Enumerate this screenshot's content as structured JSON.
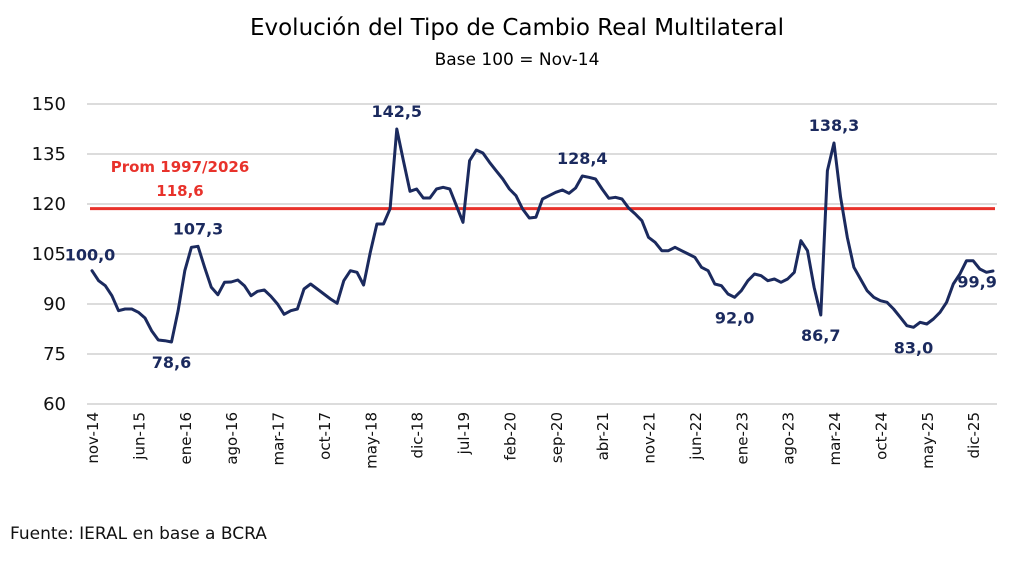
{
  "chart_data": {
    "type": "line",
    "title": "Evolución del Tipo de Cambio Real Multilateral",
    "subtitle": "Base 100 = Nov-14",
    "xlabel": "",
    "ylabel": "",
    "ylim": [
      60,
      150
    ],
    "yticks": [
      60,
      75,
      90,
      105,
      120,
      135,
      150
    ],
    "ytick_labels": [
      "60",
      "75",
      "90",
      "105",
      "120",
      "135",
      "150"
    ],
    "grid": true,
    "x_start": "nov-14",
    "x_end": "dic-25",
    "xtick_labels": [
      "nov-14",
      "jun-15",
      "ene-16",
      "ago-16",
      "mar-17",
      "oct-17",
      "may-18",
      "dic-18",
      "jul-19",
      "feb-20",
      "sep-20",
      "abr-21",
      "nov-21",
      "jun-22",
      "ene-23",
      "ago-23",
      "mar-24",
      "oct-24",
      "may-25",
      "dic-25"
    ],
    "xtick_every_months": 7,
    "series": [
      {
        "name": "Tipo de Cambio Real Multilateral",
        "color": "#1b2a5e",
        "values": [
          100.0,
          97.0,
          95.5,
          92.5,
          88.0,
          88.5,
          88.5,
          87.5,
          85.8,
          82.0,
          79.2,
          79.0,
          78.6,
          88.0,
          100.0,
          107.0,
          107.3,
          101.0,
          95.0,
          92.8,
          96.5,
          96.6,
          97.2,
          95.5,
          92.5,
          93.8,
          94.2,
          92.3,
          90.0,
          86.9,
          88.0,
          88.5,
          94.5,
          96.0,
          94.5,
          93.0,
          91.5,
          90.2,
          97.0,
          100.0,
          99.5,
          95.7,
          105.5,
          114.0,
          114.0,
          118.6,
          142.5,
          133.0,
          123.8,
          124.5,
          121.8,
          121.8,
          124.5,
          125.0,
          124.5,
          119.5,
          114.5,
          133.0,
          136.2,
          135.3,
          132.5,
          130.0,
          127.5,
          124.5,
          122.5,
          118.5,
          115.8,
          116.0,
          121.5,
          122.5,
          123.5,
          124.2,
          123.2,
          124.8,
          128.4,
          128.0,
          127.5,
          124.5,
          121.7,
          122.0,
          121.5,
          118.8,
          117.0,
          115.0,
          110.0,
          108.5,
          106.0,
          106.0,
          107.0,
          106.0,
          105.0,
          104.0,
          101.0,
          100.0,
          96.0,
          95.5,
          93.0,
          92.0,
          94.0,
          97.0,
          99.0,
          98.5,
          97.0,
          97.5,
          96.5,
          97.5,
          99.5,
          109.0,
          106.0,
          95.0,
          86.7,
          130.0,
          138.3,
          122.0,
          110.0,
          101.0,
          97.5,
          94.0,
          92.0,
          91.0,
          90.5,
          88.5,
          86.0,
          83.5,
          83.0,
          84.5,
          84.0,
          85.5,
          87.5,
          90.5,
          96.0,
          99.0,
          103.0,
          103.0,
          100.5,
          99.5,
          99.9
        ]
      },
      {
        "name": "Prom 1997/2026",
        "color": "#e8322b",
        "constant": 118.6
      }
    ],
    "data_labels": [
      {
        "index": 0,
        "text": "100,0",
        "position": "above"
      },
      {
        "index": 12,
        "text": "78,6",
        "position": "below"
      },
      {
        "index": 16,
        "text": "107,3",
        "position": "above"
      },
      {
        "index": 46,
        "text": "142,5",
        "position": "above"
      },
      {
        "index": 74,
        "text": "128,4",
        "position": "above"
      },
      {
        "index": 97,
        "text": "92,0",
        "position": "below"
      },
      {
        "index": 110,
        "text": "86,7",
        "position": "below"
      },
      {
        "index": 112,
        "text": "138,3",
        "position": "above"
      },
      {
        "index": 124,
        "text": "83,0",
        "position": "below"
      },
      {
        "index": 133,
        "text": "99,9",
        "position": "below"
      }
    ],
    "reference_line": {
      "label_line1": "Prom 1997/2026",
      "label_line2": "118,6",
      "value": 118.6
    },
    "legend": "none"
  },
  "footer": {
    "source": "Fuente: IERAL en base a BCRA"
  }
}
